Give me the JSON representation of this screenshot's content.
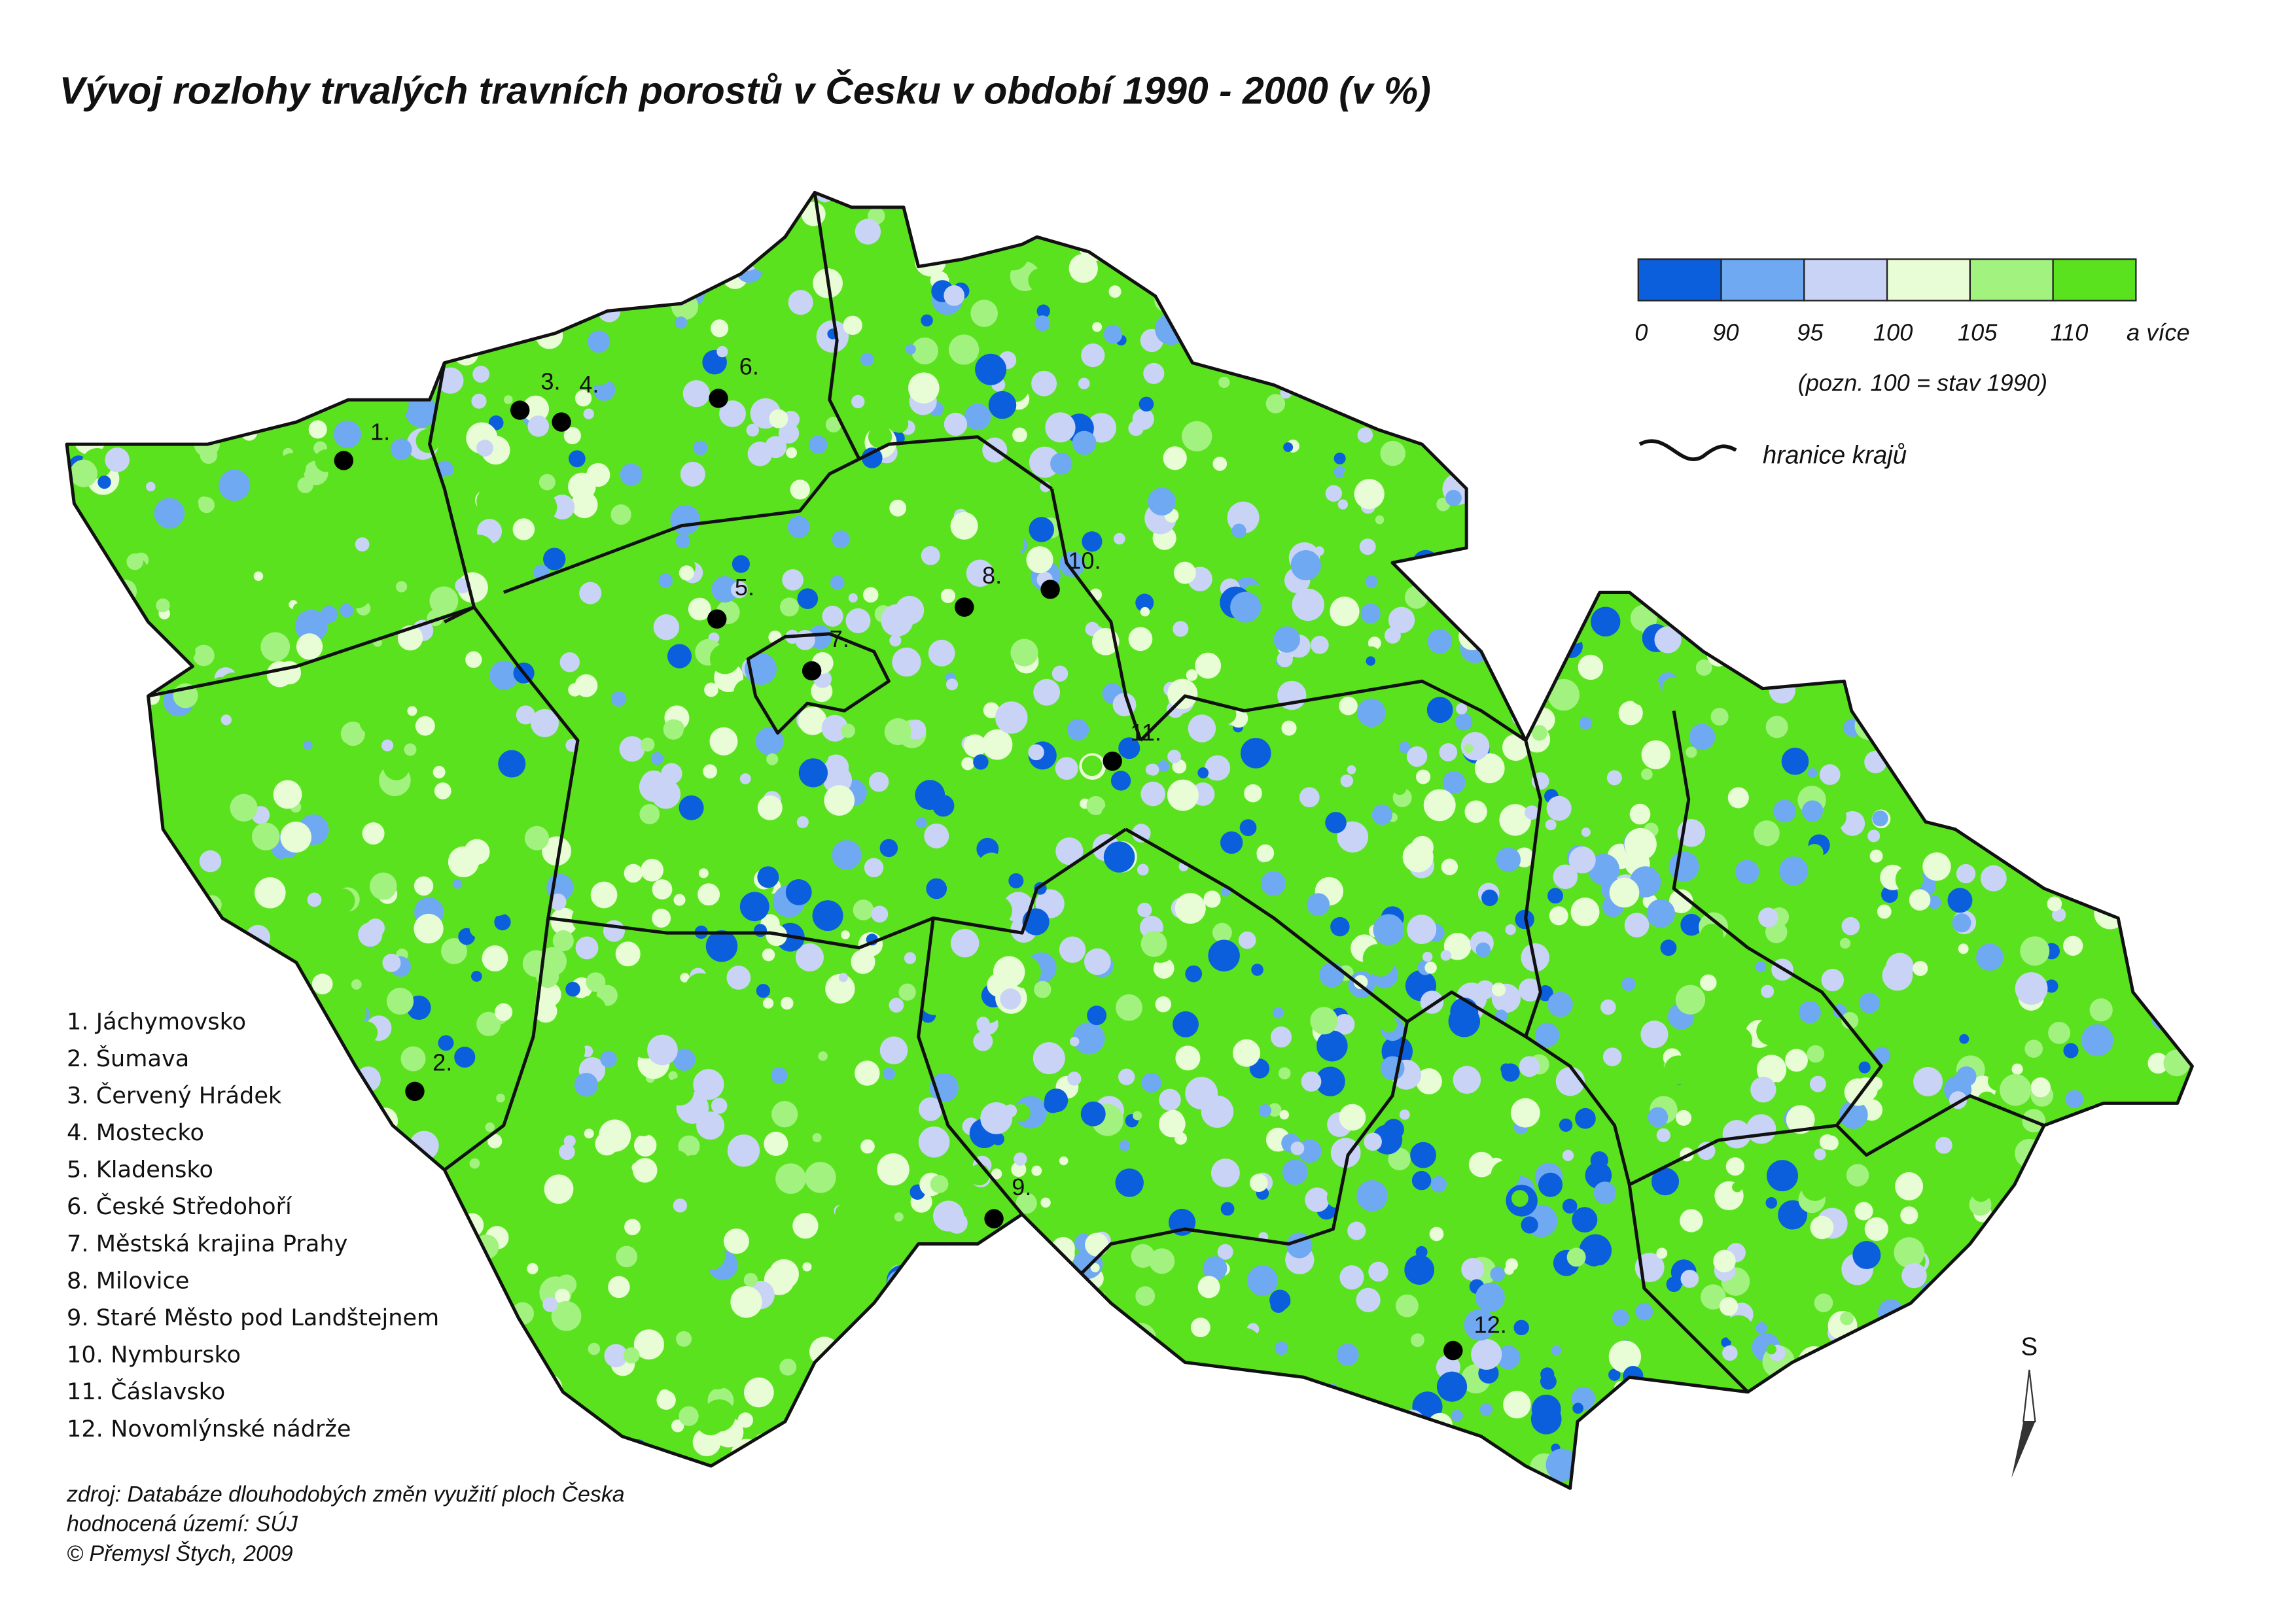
{
  "title": "Vývoj rozlohy trvalých travních porostů v Česku v období 1990 - 2000 (v %)",
  "legend": {
    "colors": [
      "#0c5fdc",
      "#6ea9f2",
      "#c9d3f6",
      "#e8fcd6",
      "#a2f27f",
      "#5be21f"
    ],
    "labels": [
      "0",
      "90",
      "95",
      "100",
      "105",
      "110",
      "a více"
    ],
    "note": "(pozn. 100 = stav 1990)",
    "border_label": "hranice krajů"
  },
  "places": [
    {
      "number": "1.",
      "name": "Jáchymovsko"
    },
    {
      "number": "2.",
      "name": "Šumava"
    },
    {
      "number": "3.",
      "name": "Červený Hrádek"
    },
    {
      "number": "4.",
      "name": "Mostecko"
    },
    {
      "number": "5.",
      "name": "Kladensko"
    },
    {
      "number": "6.",
      "name": "České Středohoří"
    },
    {
      "number": "7.",
      "name": "Městská krajina Prahy"
    },
    {
      "number": "8.",
      "name": "Milovice"
    },
    {
      "number": "9.",
      "name": "Staré Město pod Landštejnem"
    },
    {
      "number": "10.",
      "name": "Nymbursko"
    },
    {
      "number": "11.",
      "name": "Čáslavsko"
    },
    {
      "number": "12.",
      "name": "Novomlýnské nádrže"
    }
  ],
  "source": [
    "zdroj: Databáze dlouhodobých změn využití ploch Česka",
    "hodnocená území: SÚJ",
    "© Přemysl Štych, 2009"
  ],
  "north": "S"
}
